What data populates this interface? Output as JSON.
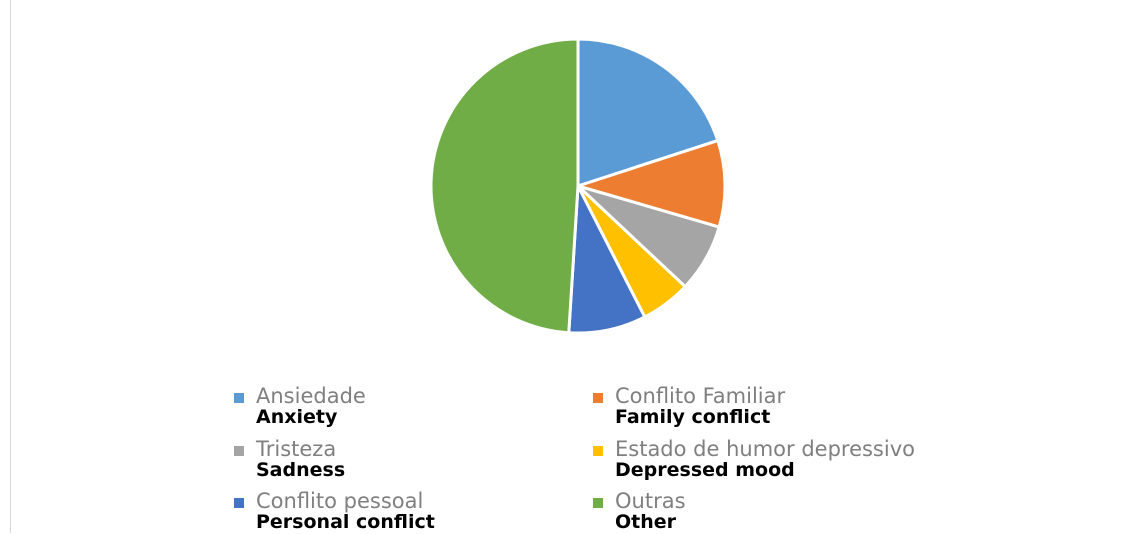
{
  "chart_data": {
    "type": "pie",
    "start_angle_deg": 0,
    "direction": "clockwise",
    "slices": [
      {
        "label": "Ansiedade",
        "label_en": "Anxiety",
        "value": 20.0,
        "color": "#5b9bd5"
      },
      {
        "label": "Conflito Familiar",
        "label_en": "Family conflict",
        "value": 9.5,
        "color": "#ed7d31"
      },
      {
        "label": "Tristeza",
        "label_en": "Sadness",
        "value": 7.5,
        "color": "#a5a5a5"
      },
      {
        "label": "Estado de humor depressivo",
        "label_en": "Depressed mood",
        "value": 5.5,
        "color": "#ffc000"
      },
      {
        "label": "Conflito pessoal",
        "label_en": "Personal conflict",
        "value": 8.5,
        "color": "#4472c4"
      },
      {
        "label": "Outras",
        "label_en": "Other",
        "value": 49.0,
        "color": "#70ad47"
      }
    ],
    "legend_position": "bottom"
  }
}
